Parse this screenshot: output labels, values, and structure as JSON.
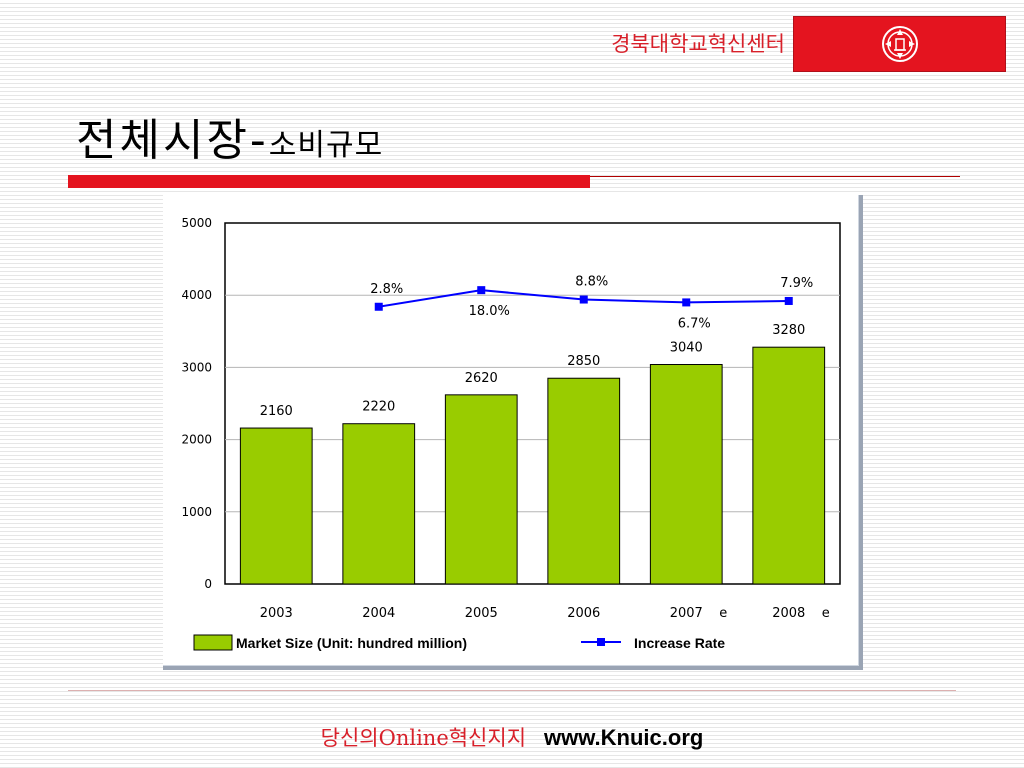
{
  "header": {
    "org_name": "경북대학교혁신센터",
    "logo_icon": "university-emblem-icon",
    "brand_color": "#e4141f"
  },
  "slide": {
    "title_main": "전체시장-",
    "title_sub": "소비규모"
  },
  "chart_data": {
    "type": "bar",
    "categories": [
      "2003",
      "2004",
      "2005",
      "2006",
      "2007",
      "2008"
    ],
    "category_suffixes": [
      "",
      "",
      "",
      "",
      "e",
      "e"
    ],
    "ylim": [
      0,
      5000
    ],
    "yticks": [
      0,
      1000,
      2000,
      3000,
      4000,
      5000
    ],
    "grid": true,
    "legend_position": "bottom",
    "series": [
      {
        "name": "Market Size (Unit: hundred million)",
        "type": "bar",
        "color": "#99cc00",
        "values": [
          2160,
          2220,
          2620,
          2850,
          3040,
          3280
        ],
        "labels": [
          "2160",
          "2220",
          "2620",
          "2850",
          "3040",
          "3280"
        ]
      },
      {
        "name": "Increase Rate",
        "type": "line",
        "color": "#0000ff",
        "x": [
          "2004",
          "2005",
          "2006",
          "2007",
          "2008"
        ],
        "values": [
          3840,
          4070,
          3940,
          3900,
          3920
        ],
        "labels": [
          "2.8%",
          "18.0%",
          "8.8%",
          "6.7%",
          "7.9%"
        ],
        "label_positions": [
          "above",
          "below",
          "above",
          "below",
          "above"
        ]
      }
    ]
  },
  "footer": {
    "tagline": "당신의Online혁신지지",
    "url": "www.Knuic.org"
  }
}
